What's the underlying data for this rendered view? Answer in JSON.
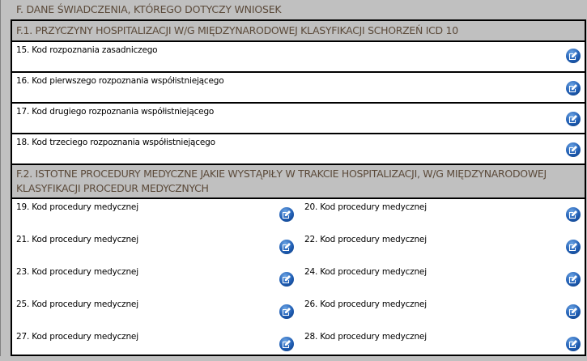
{
  "section_title": "F. DANE ŚWIADCZENIA, KTÓREGO DOTYCZY WNIOSEK",
  "f1": {
    "title": "F.1. PRZYCZYNY HOSPITALIZACJI W/G MIĘDZYNARODOWEJ KLASYFIKACJI SCHORZEŃ ICD 10",
    "fields": [
      {
        "label": "15. Kod rozpoznania zasadniczego",
        "icon": "edit-icon"
      },
      {
        "label": "16. Kod pierwszego rozpoznania współistniejącego",
        "icon": "edit-icon"
      },
      {
        "label": "17. Kod drugiego rozpoznania współistniejącego",
        "icon": "edit-icon"
      },
      {
        "label": "18. Kod trzeciego rozpoznania współistniejącego",
        "icon": "edit-icon"
      }
    ]
  },
  "f2": {
    "title": "F.2. ISTOTNE PROCEDURY MEDYCZNE JAKIE WYSTĄPIŁY W TRAKCIE HOSPITALIZACJI, W/G MIĘDZYNARODOWEJ KLASYFIKACJI PROCEDUR MEDYCZNYCH",
    "fields": [
      {
        "label": "19. Kod procedury medycznej"
      },
      {
        "label": "20. Kod procedury medycznej"
      },
      {
        "label": "21. Kod procedury medycznej"
      },
      {
        "label": "22. Kod procedury medycznej"
      },
      {
        "label": "23. Kod procedury medycznej"
      },
      {
        "label": "24. Kod procedury medycznej"
      },
      {
        "label": "25. Kod procedury medycznej"
      },
      {
        "label": "26. Kod procedury medycznej"
      },
      {
        "label": "27. Kod procedury medycznej"
      },
      {
        "label": "28. Kod procedury medycznej"
      }
    ]
  },
  "colors": {
    "background": "#c0c0c0",
    "header_text": "#5b4a3a",
    "icon": "#1f5db3"
  }
}
